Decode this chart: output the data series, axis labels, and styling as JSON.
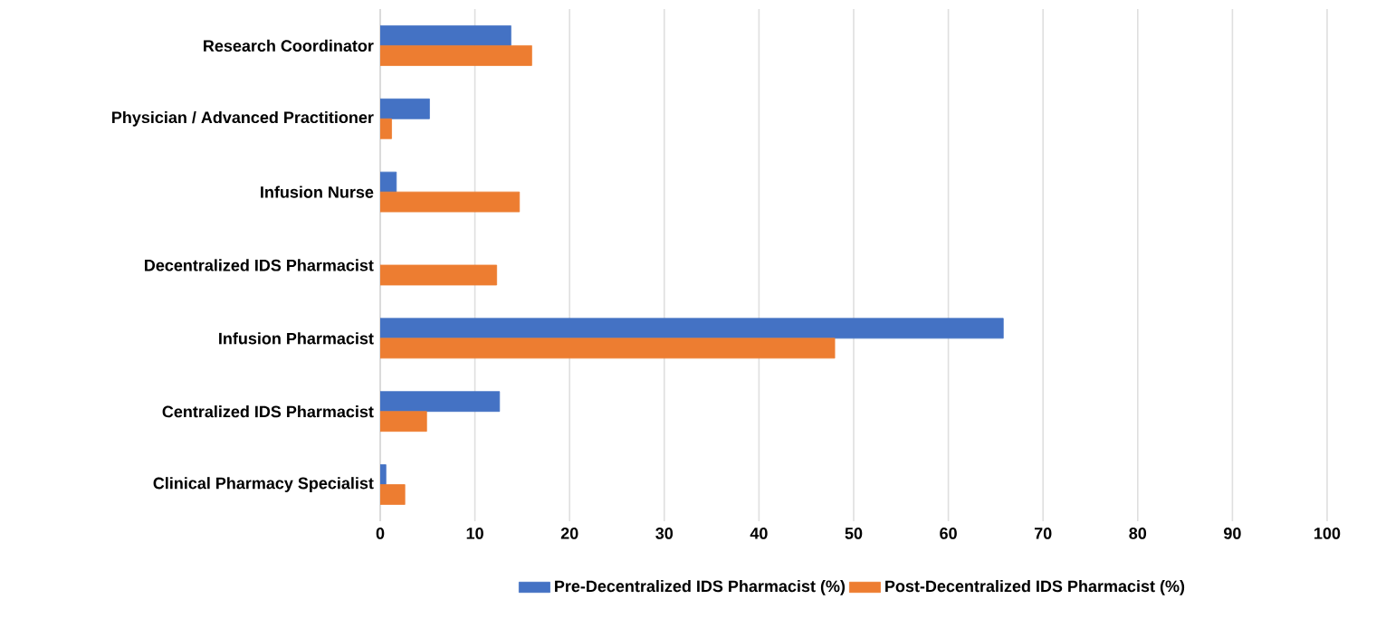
{
  "chart_data": {
    "type": "bar",
    "orientation": "horizontal",
    "categories": [
      "Research Coordinator",
      "Physician / Advanced Practitioner",
      "Infusion Nurse",
      "Decentralized IDS Pharmacist",
      "Infusion Pharmacist",
      "Centralized IDS Pharmacist",
      "Clinical Pharmacy Specialist"
    ],
    "series": [
      {
        "name": "Pre-Decentralized IDS Pharmacist (%)",
        "color": "#4472c4",
        "values": [
          13.8,
          5.2,
          1.7,
          null,
          65.8,
          12.6,
          0.6
        ]
      },
      {
        "name": "Post-Decentralized IDS Pharmacist (%)",
        "color": "#ed7d31",
        "values": [
          16.0,
          1.2,
          14.7,
          12.3,
          48.0,
          4.9,
          2.6
        ]
      }
    ],
    "xlim": [
      0,
      100
    ],
    "xticks": [
      0,
      10,
      20,
      30,
      40,
      50,
      60,
      70,
      80,
      90,
      100
    ],
    "grid": "x",
    "legend": "bottom"
  }
}
